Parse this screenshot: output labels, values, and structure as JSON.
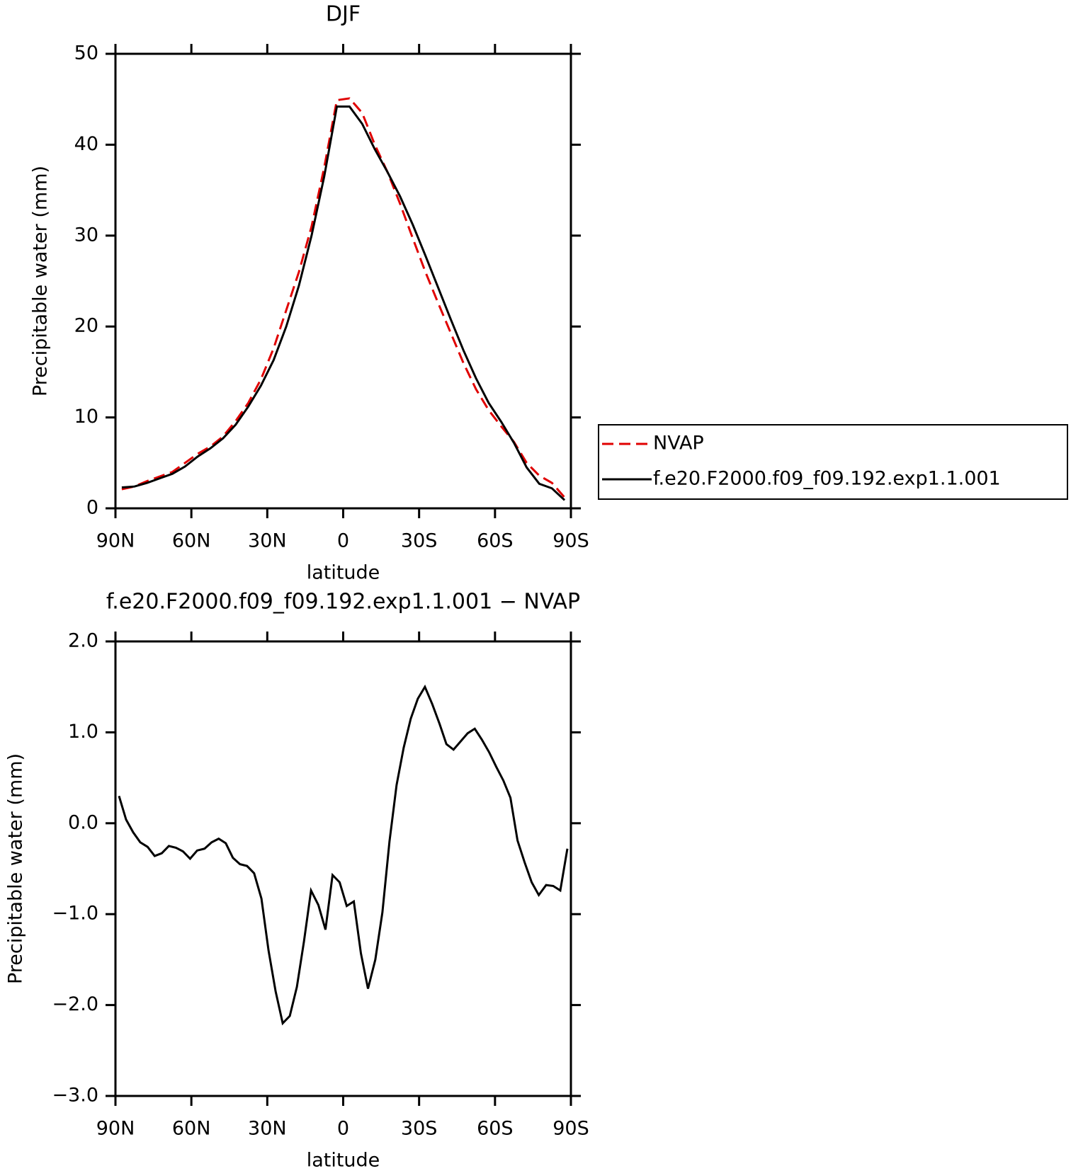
{
  "chart_data": [
    {
      "type": "line",
      "title": "DJF",
      "xlabel": "latitude",
      "ylabel": "Precipitable water (mm)",
      "x": [
        87.5,
        82.5,
        77.5,
        72.5,
        67.5,
        62.5,
        57.5,
        52.5,
        47.5,
        42.5,
        37.5,
        32.5,
        27.5,
        22.5,
        17.5,
        12.5,
        7.5,
        2.5,
        -2.5,
        -7.5,
        -12.5,
        -17.5,
        -22.5,
        -27.5,
        -32.5,
        -37.5,
        -42.5,
        -47.5,
        -52.5,
        -57.5,
        -62.5,
        -67.5,
        -72.5,
        -77.5,
        -82.5,
        -87.5
      ],
      "series": [
        {
          "name": "NVAP",
          "color": "#e00000",
          "dash": "dashed",
          "values": [
            2.1,
            2.4,
            3.0,
            3.5,
            4.0,
            5.0,
            6.0,
            6.8,
            7.9,
            9.6,
            11.6,
            14.2,
            17.6,
            21.8,
            26.0,
            31.0,
            37.5,
            44.9,
            45.1,
            43.5,
            40.0,
            37.0,
            33.5,
            29.7,
            26.0,
            22.6,
            19.3,
            16.0,
            13.1,
            10.8,
            9.0,
            7.3,
            5.0,
            3.6,
            2.8,
            1.2
          ]
        },
        {
          "name": "f.e20.F2000.f09_f09.192.exp1.1.001",
          "color": "#000000",
          "dash": "solid",
          "values": [
            2.3,
            2.4,
            2.8,
            3.3,
            3.8,
            4.6,
            5.7,
            6.6,
            7.7,
            9.2,
            11.2,
            13.5,
            16.3,
            20.0,
            24.5,
            30.0,
            36.5,
            44.2,
            44.2,
            42.3,
            39.5,
            37.0,
            34.3,
            31.2,
            27.8,
            24.3,
            20.8,
            17.4,
            14.3,
            11.6,
            9.5,
            7.2,
            4.5,
            2.7,
            2.2,
            0.9
          ]
        }
      ],
      "xlim": [
        90,
        -90
      ],
      "xticks": [
        {
          "value": 90,
          "label": "90N"
        },
        {
          "value": 60,
          "label": "60N"
        },
        {
          "value": 30,
          "label": "30N"
        },
        0,
        {
          "value": -30,
          "label": "30S"
        },
        {
          "value": -60,
          "label": "60S"
        },
        {
          "value": -90,
          "label": "90S"
        }
      ],
      "ylim": [
        0,
        50
      ],
      "yticks": [
        0,
        10,
        20,
        30,
        40,
        50
      ],
      "legend": "right"
    },
    {
      "type": "line",
      "title": "f.e20.F2000.f09_f09.192.exp1.1.001 − NVAP",
      "xlabel": "latitude",
      "ylabel": "Precipitable water (mm)",
      "x": [
        88.6,
        85.8,
        83.0,
        80.2,
        77.3,
        74.5,
        71.7,
        68.9,
        66.1,
        63.3,
        60.5,
        57.7,
        54.8,
        52.0,
        49.2,
        46.4,
        43.6,
        40.8,
        38.0,
        35.2,
        32.3,
        29.5,
        26.7,
        23.9,
        21.1,
        18.3,
        15.5,
        12.7,
        9.8,
        7.0,
        4.2,
        1.4,
        -1.4,
        -4.2,
        -7.0,
        -9.8,
        -12.7,
        -15.5,
        -18.3,
        -21.1,
        -23.9,
        -26.7,
        -29.5,
        -32.3,
        -35.2,
        -38.0,
        -40.8,
        -43.6,
        -46.4,
        -49.2,
        -52.0,
        -54.8,
        -57.7,
        -60.5,
        -63.3,
        -66.1,
        -68.9,
        -71.7,
        -74.5,
        -77.3,
        -80.2,
        -83.0,
        -85.8,
        -88.6
      ],
      "series": [
        {
          "name": "difference",
          "color": "#000000",
          "dash": "solid",
          "values": [
            0.3,
            0.04,
            -0.1,
            -0.21,
            -0.26,
            -0.36,
            -0.33,
            -0.25,
            -0.27,
            -0.31,
            -0.39,
            -0.3,
            -0.28,
            -0.21,
            -0.17,
            -0.22,
            -0.38,
            -0.45,
            -0.47,
            -0.55,
            -0.83,
            -1.4,
            -1.85,
            -2.2,
            -2.12,
            -1.8,
            -1.3,
            -0.74,
            -0.9,
            -1.17,
            -0.57,
            -0.65,
            -0.91,
            -0.86,
            -1.43,
            -1.82,
            -1.5,
            -0.98,
            -0.2,
            0.42,
            0.83,
            1.15,
            1.37,
            1.5,
            1.31,
            1.1,
            0.87,
            0.81,
            0.9,
            0.99,
            1.04,
            0.92,
            0.78,
            0.62,
            0.47,
            0.28,
            -0.19,
            -0.43,
            -0.65,
            -0.79,
            -0.68,
            -0.69,
            -0.74,
            -0.28
          ]
        }
      ],
      "xlim": [
        90,
        -90
      ],
      "xticks": [
        {
          "value": 90,
          "label": "90N"
        },
        {
          "value": 60,
          "label": "60N"
        },
        {
          "value": 30,
          "label": "30N"
        },
        0,
        {
          "value": -30,
          "label": "30S"
        },
        {
          "value": -60,
          "label": "60S"
        },
        {
          "value": -90,
          "label": "90S"
        }
      ],
      "ylim": [
        -3,
        2
      ],
      "yticks": [
        {
          "value": -3,
          "label": "−3.0"
        },
        {
          "value": -2,
          "label": "−2.0"
        },
        {
          "value": -1,
          "label": "−1.0"
        },
        {
          "value": 0,
          "label": "0.0"
        },
        {
          "value": 1,
          "label": "1.0"
        },
        {
          "value": 2,
          "label": "2.0"
        }
      ]
    }
  ]
}
